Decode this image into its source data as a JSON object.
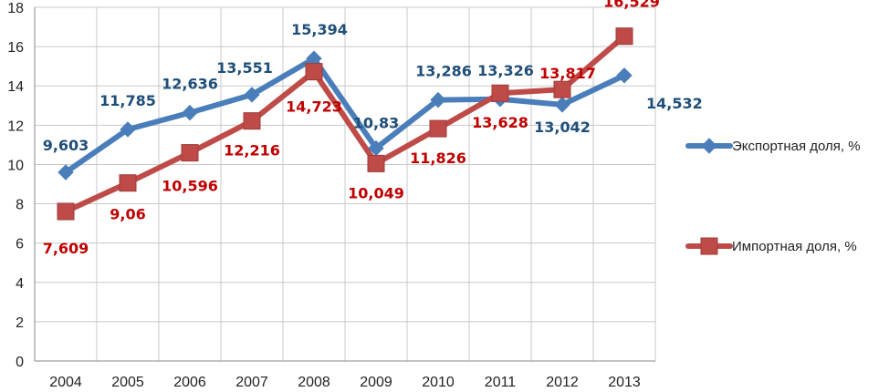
{
  "chart_data": {
    "type": "line",
    "title": "",
    "xlabel": "",
    "ylabel": "",
    "ylim": [
      0,
      18
    ],
    "ytick_step": 2,
    "grid": true,
    "legend_position": "right",
    "categories": [
      "2004",
      "2005",
      "2006",
      "2007",
      "2008",
      "2009",
      "2010",
      "2011",
      "2012",
      "2013"
    ],
    "series": [
      {
        "name": "Экспортная доля, %",
        "color": "#4A7EBB",
        "label_color": "#1F4E79",
        "marker": "diamond",
        "values": [
          9.603,
          11.785,
          12.636,
          13.551,
          15.394,
          10.83,
          13.286,
          13.326,
          13.042,
          14.532
        ],
        "labels": [
          "9,603",
          "11,785",
          "12,636",
          "13,551",
          "15,394",
          "10,83",
          "13,286",
          "13,326",
          "13,042",
          "14,532"
        ]
      },
      {
        "name": "Импортная доля, %",
        "color": "#BE4B48",
        "label_color": "#C00000",
        "marker": "square",
        "values": [
          7.609,
          9.06,
          10.596,
          12.216,
          14.723,
          10.049,
          11.826,
          13.628,
          13.817,
          16.529
        ],
        "labels": [
          "7,609",
          "9,06",
          "10,596",
          "12,216",
          "14,723",
          "10,049",
          "11,826",
          "13,628",
          "13,817",
          "16,529"
        ]
      }
    ]
  }
}
